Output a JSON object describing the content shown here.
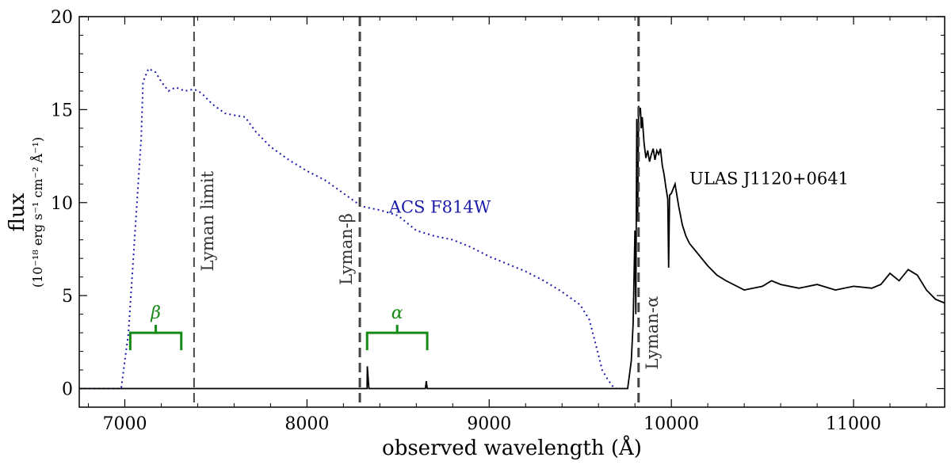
{
  "chart_data": {
    "type": "line",
    "xlabel": "observed wavelength (Å)",
    "ylabel": "flux",
    "ylabel_units": "(10⁻¹⁸ erg s⁻¹ cm⁻² Å⁻¹)",
    "xlim": [
      6750,
      11500
    ],
    "ylim": [
      -1,
      20
    ],
    "xticks": [
      7000,
      8000,
      9000,
      10000,
      11000
    ],
    "yticks": [
      0,
      5,
      10,
      15,
      20
    ],
    "series": [
      {
        "name": "ULAS J1120+0641",
        "style": "solid",
        "color": "#000000",
        "x": [
          6750,
          7000,
          7500,
          8000,
          8330,
          8331,
          8340,
          8345,
          8500,
          8650,
          8655,
          8660,
          9000,
          9500,
          9700,
          9760,
          9780,
          9790,
          9800,
          9805,
          9810,
          9815,
          9820,
          9825,
          9830,
          9835,
          9840,
          9850,
          9860,
          9870,
          9880,
          9890,
          9900,
          9910,
          9920,
          9930,
          9940,
          9950,
          9960,
          9970,
          9980,
          9985,
          9990,
          10000,
          10020,
          10040,
          10060,
          10080,
          10100,
          10150,
          10200,
          10250,
          10300,
          10400,
          10500,
          10550,
          10600,
          10700,
          10800,
          10900,
          11000,
          11100,
          11150,
          11200,
          11250,
          11300,
          11350,
          11400,
          11450,
          11500
        ],
        "y": [
          0,
          0,
          0,
          0,
          0,
          1.2,
          0,
          0,
          0,
          0,
          0.4,
          0,
          0,
          0,
          0,
          0,
          1.5,
          3.5,
          8.5,
          4.0,
          14.5,
          9.0,
          15.2,
          14.8,
          15.1,
          14.0,
          14.6,
          13.2,
          12.4,
          12.8,
          12.2,
          12.6,
          12.9,
          12.3,
          12.8,
          12.6,
          12.9,
          12.0,
          11.5,
          10.8,
          10.2,
          6.5,
          10.4,
          10.5,
          11.0,
          9.8,
          8.8,
          8.2,
          7.8,
          7.2,
          6.6,
          6.1,
          5.8,
          5.3,
          5.5,
          5.8,
          5.6,
          5.4,
          5.6,
          5.3,
          5.5,
          5.4,
          5.6,
          6.2,
          5.8,
          6.4,
          6.1,
          5.3,
          4.8,
          4.6
        ]
      },
      {
        "name": "ACS F814W",
        "style": "dotted",
        "color": "#1a1aaa",
        "x": [
          6750,
          6980,
          7020,
          7060,
          7090,
          7100,
          7130,
          7170,
          7200,
          7240,
          7280,
          7330,
          7380,
          7420,
          7480,
          7550,
          7600,
          7660,
          7720,
          7800,
          7900,
          8000,
          8100,
          8200,
          8300,
          8400,
          8500,
          8600,
          8700,
          8800,
          8900,
          9000,
          9100,
          9200,
          9300,
          9400,
          9500,
          9550,
          9600,
          9620,
          9650,
          9680,
          9700
        ],
        "y": [
          0,
          0,
          3.0,
          9.0,
          13.5,
          16.5,
          17.2,
          17.0,
          16.5,
          16.0,
          16.2,
          16.0,
          16.1,
          15.9,
          15.3,
          14.8,
          14.7,
          14.6,
          13.8,
          13.0,
          12.3,
          11.7,
          11.2,
          10.5,
          9.8,
          9.6,
          9.3,
          8.5,
          8.2,
          8.0,
          7.6,
          7.1,
          6.7,
          6.3,
          5.8,
          5.2,
          4.5,
          3.7,
          1.8,
          1.0,
          0.5,
          0.1,
          0
        ]
      }
    ],
    "vlines": [
      {
        "x": 7380,
        "label": "Lyman limit",
        "label_y": 9
      },
      {
        "x": 8290,
        "label": "Lyman-β",
        "label_y": 7.5
      },
      {
        "x": 9820,
        "label": "Lyman-α",
        "label_y": 3
      }
    ],
    "brackets": [
      {
        "label": "β",
        "x1": 7030,
        "x2": 7310,
        "y": 3.0,
        "height": 1.0,
        "color": "#168a16"
      },
      {
        "label": "α",
        "x1": 8330,
        "x2": 8660,
        "y": 3.0,
        "height": 1.0,
        "color": "#168a16"
      }
    ],
    "annotations": [
      {
        "text": "ULAS J1120+0641",
        "x": 10100,
        "y": 11
      },
      {
        "text": "ACS F814W",
        "x": 8450,
        "y": 9.8
      }
    ]
  }
}
